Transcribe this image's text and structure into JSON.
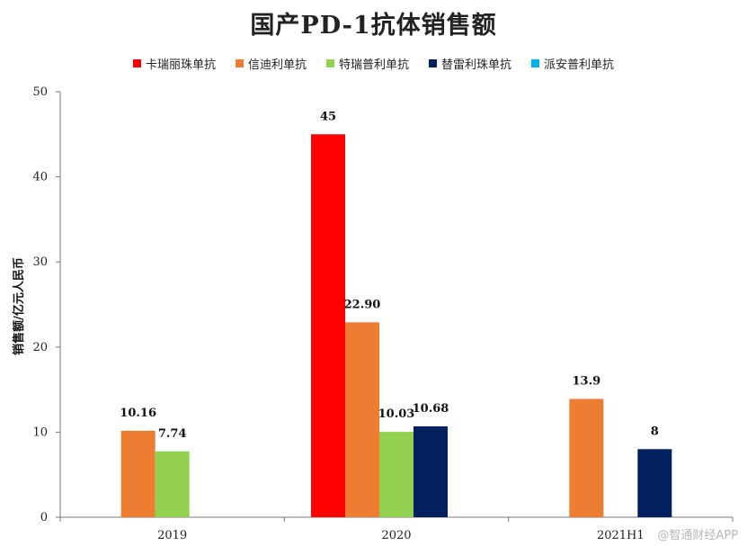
{
  "chart_data": {
    "type": "bar",
    "title": "国产PD-1抗体销售额",
    "xlabel": "",
    "ylabel": "销售额/亿元人民币",
    "ylim": [
      0,
      50
    ],
    "yticks": [
      0,
      10,
      20,
      30,
      40,
      50
    ],
    "categories": [
      "2019",
      "2020",
      "2021H1"
    ],
    "series": [
      {
        "name": "卡瑞丽珠单抗",
        "color": "#ff0000",
        "values": [
          null,
          45,
          null
        ],
        "labels": [
          null,
          "45",
          null
        ]
      },
      {
        "name": "信迪利单抗",
        "color": "#ed7d31",
        "values": [
          10.16,
          22.9,
          13.9
        ],
        "labels": [
          "10.16",
          "22.90",
          "13.9"
        ]
      },
      {
        "name": "特瑞普利单抗",
        "color": "#92d050",
        "values": [
          7.74,
          10.03,
          null
        ],
        "labels": [
          "7.74",
          "10.03",
          null
        ]
      },
      {
        "name": "替雷利珠单抗",
        "color": "#002060",
        "values": [
          null,
          10.68,
          8
        ],
        "labels": [
          null,
          "10.68",
          "8"
        ]
      },
      {
        "name": "派安普利单抗",
        "color": "#00b0f0",
        "values": [
          null,
          null,
          null
        ],
        "labels": [
          null,
          null,
          null
        ]
      }
    ],
    "legend_position": "top",
    "grid": false
  },
  "watermark": "@智通财经APP"
}
